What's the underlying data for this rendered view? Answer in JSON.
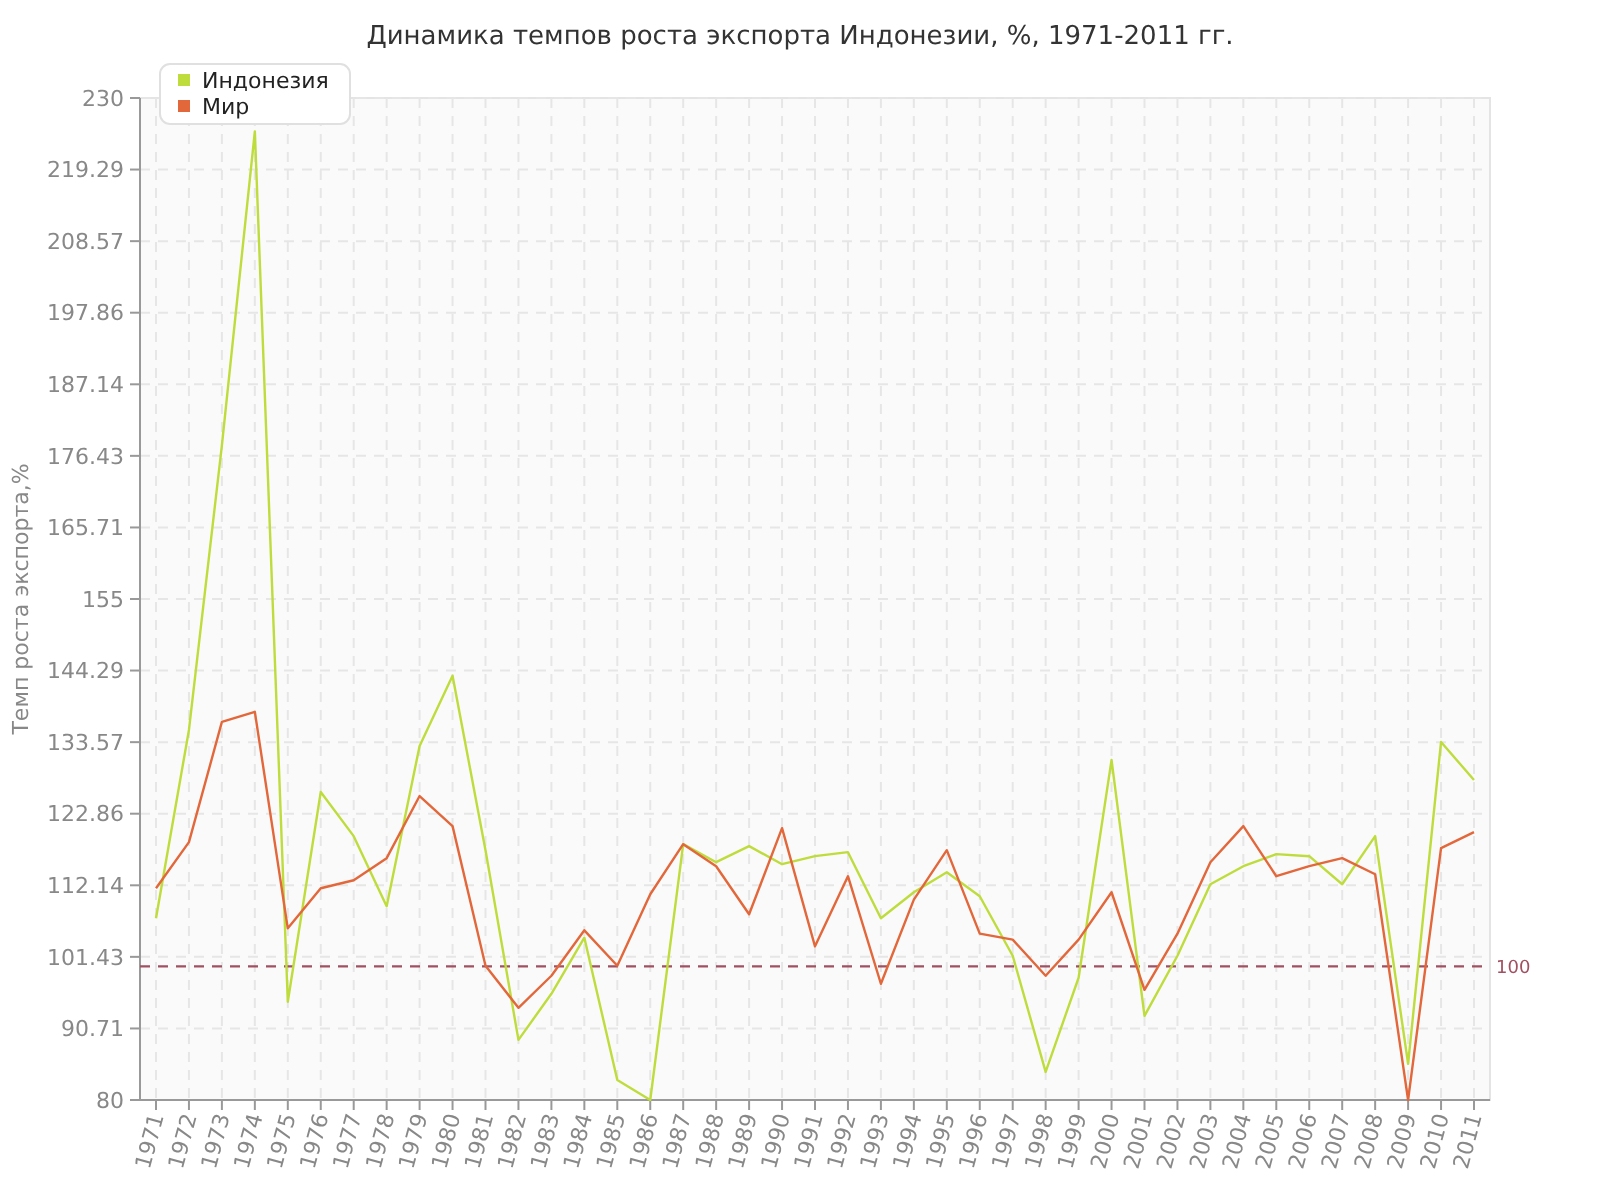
{
  "chart_data": {
    "type": "line",
    "title": "Динамика темпов роста экспорта Индонезии, %, 1971-2011 гг.",
    "ylabel": "Темп роста экспорта,%",
    "categories": [
      "1971",
      "1972",
      "1973",
      "1974",
      "1975",
      "1976",
      "1977",
      "1978",
      "1979",
      "1980",
      "1981",
      "1982",
      "1983",
      "1984",
      "1985",
      "1986",
      "1987",
      "1988",
      "1989",
      "1990",
      "1991",
      "1992",
      "1993",
      "1994",
      "1995",
      "1996",
      "1997",
      "1998",
      "1999",
      "2000",
      "2001",
      "2002",
      "2003",
      "2004",
      "2005",
      "2006",
      "2007",
      "2008",
      "2009",
      "2010",
      "2011"
    ],
    "series": [
      {
        "name": "Индонезия",
        "color": "#bedc3c",
        "values": [
          107.2,
          135.4,
          178,
          225,
          94.7,
          126.1,
          119.5,
          109,
          133,
          143.5,
          117.4,
          89,
          95.9,
          104.3,
          83,
          80,
          118.3,
          115.6,
          118,
          115.3,
          116.5,
          117.1,
          107.2,
          111.1,
          114.1,
          110.5,
          101.6,
          84.2,
          98.3,
          130.9,
          92.6,
          101.6,
          112.3,
          115,
          116.8,
          116.5,
          112.3,
          119.5,
          85.4,
          133.6,
          127.9
        ]
      },
      {
        "name": "Мир",
        "color": "#e2673a",
        "values": [
          111.7,
          118.6,
          136.6,
          138.1,
          105.7,
          111.7,
          112.9,
          116.2,
          125.5,
          121,
          100.1,
          93.8,
          98.6,
          105.4,
          100.1,
          110.8,
          118.3,
          115,
          107.8,
          120.7,
          103,
          113.5,
          97.4,
          110,
          117.4,
          104.9,
          104,
          98.6,
          104,
          111.1,
          96.5,
          104.9,
          115.6,
          121,
          113.5,
          115,
          116.2,
          113.8,
          80,
          117.7,
          120.1
        ]
      }
    ],
    "ylim": [
      80,
      230
    ],
    "yticks": [
      80,
      90.71,
      101.43,
      112.14,
      122.86,
      133.57,
      144.29,
      155,
      165.71,
      176.43,
      187.14,
      197.86,
      208.57,
      219.29,
      230
    ],
    "grid": true,
    "legend": "top left",
    "ref_lines": [
      {
        "axis": "y",
        "value": 100,
        "label": "100",
        "color": "#a05060",
        "line_style": "dashed"
      }
    ]
  }
}
